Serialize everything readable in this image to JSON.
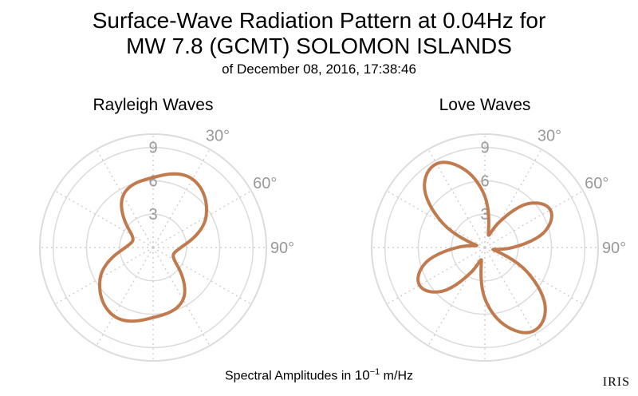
{
  "title": {
    "line1": "Surface-Wave Radiation Pattern at 0.04Hz for",
    "line2": "MW 7.8 (GCMT) SOLOMON ISLANDS",
    "subtitle": "of December 08, 2016, 17:38:46"
  },
  "footer": {
    "label": "Spectral Amplitudes in ",
    "unit_base": "10",
    "unit_exp": "−1",
    "unit_suffix": " m/Hz"
  },
  "logo": {
    "text": "IRIS"
  },
  "colors": {
    "pattern": "#c17a4e",
    "grid": "#dcdcdc",
    "tick": "#999999"
  },
  "chart_data": [
    {
      "type": "polar-line",
      "title": "Rayleigh Waves",
      "radial_ticks": [
        "3",
        "6",
        "9"
      ],
      "radial_values": [
        3,
        6,
        9
      ],
      "rlim": [
        0,
        10.2
      ],
      "angle_ticks": [
        "30°",
        "60°",
        "90°"
      ],
      "angle_values": [
        30,
        60,
        90
      ],
      "grid": true,
      "azimuth_deg": [
        0,
        30,
        60,
        90,
        120,
        150,
        180,
        210,
        240,
        270,
        300,
        330
      ],
      "amplitude": [
        6.3,
        7.1,
        5.5,
        2.5,
        2.2,
        5.4,
        6.3,
        7.1,
        5.5,
        2.5,
        2.2,
        5.4
      ]
    },
    {
      "type": "polar-line",
      "title": "Love Waves",
      "radial_ticks": [
        "3",
        "6",
        "9"
      ],
      "radial_values": [
        3,
        6,
        9
      ],
      "rlim": [
        0,
        10.2
      ],
      "angle_ticks": [
        "30°",
        "60°",
        "90°"
      ],
      "angle_values": [
        30,
        60,
        90
      ],
      "grid": true,
      "azimuth_deg": [
        0,
        15,
        30,
        45,
        60,
        75,
        90,
        105,
        120,
        135,
        150,
        165,
        180,
        195,
        210,
        225,
        240,
        255,
        270,
        285,
        300,
        315,
        330,
        345
      ],
      "amplitude": [
        4.6,
        1.2,
        2.7,
        5.6,
        6.8,
        5.6,
        2.5,
        0.8,
        4.4,
        7.7,
        8.7,
        7.3,
        4.6,
        1.2,
        2.7,
        5.6,
        6.8,
        5.6,
        2.5,
        0.8,
        4.4,
        7.7,
        8.7,
        7.3
      ]
    }
  ]
}
